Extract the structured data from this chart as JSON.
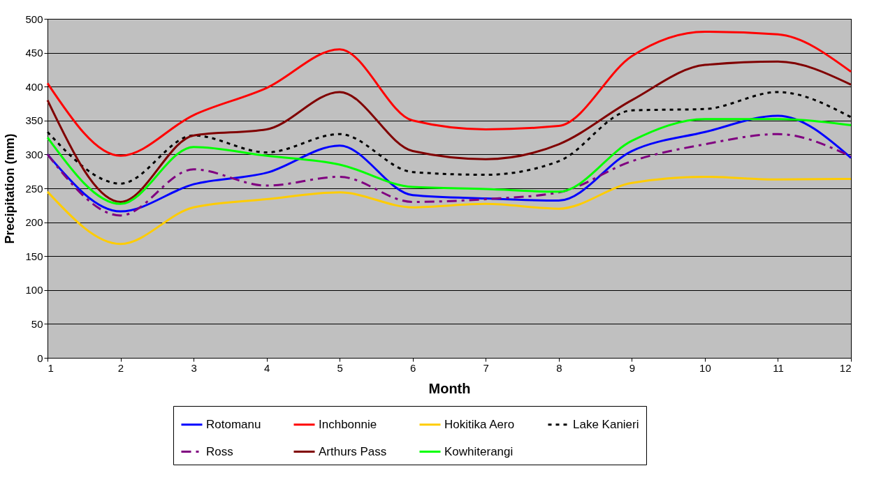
{
  "chart_data": {
    "type": "line",
    "xlabel": "Month",
    "ylabel": "Precipitation (mm)",
    "x": [
      1,
      2,
      3,
      4,
      5,
      6,
      7,
      8,
      9,
      10,
      11,
      12
    ],
    "xlim": [
      1,
      12
    ],
    "xticks": [
      1,
      2,
      3,
      4,
      5,
      6,
      7,
      8,
      9,
      10,
      11,
      12
    ],
    "ylim": [
      0,
      500
    ],
    "yticks": [
      0,
      50,
      100,
      150,
      200,
      250,
      300,
      350,
      400,
      450,
      500
    ],
    "grid": "y",
    "legend": "bottom",
    "marker": "none",
    "series": [
      {
        "name": "Rotomanu",
        "color": "#0000ff",
        "line_style": "solid",
        "values": [
          300,
          216,
          256,
          273,
          313,
          240,
          235,
          232,
          305,
          333,
          357,
          295
        ]
      },
      {
        "name": "Inchbonnie",
        "color": "#ff0000",
        "line_style": "solid",
        "values": [
          405,
          298,
          358,
          398,
          455,
          350,
          337,
          342,
          445,
          481,
          477,
          422
        ]
      },
      {
        "name": "Hokitika Aero",
        "color": "#ffcc00",
        "line_style": "solid",
        "values": [
          245,
          168,
          222,
          234,
          244,
          222,
          227,
          220,
          258,
          267,
          263,
          264
        ]
      },
      {
        "name": "Lake Kanieri",
        "color": "#000000",
        "line_style": "dotted",
        "values": [
          333,
          257,
          328,
          303,
          330,
          274,
          270,
          290,
          365,
          367,
          392,
          355
        ]
      },
      {
        "name": "Ross",
        "color": "#800080",
        "line_style": "dashed",
        "values": [
          300,
          210,
          278,
          254,
          267,
          230,
          234,
          244,
          290,
          315,
          330,
          297
        ]
      },
      {
        "name": "Arthurs Pass",
        "color": "#800000",
        "line_style": "solid",
        "values": [
          380,
          230,
          328,
          337,
          392,
          305,
          293,
          315,
          380,
          432,
          437,
          403
        ]
      },
      {
        "name": "Kowhiterangi",
        "color": "#00ff00",
        "line_style": "solid",
        "values": [
          325,
          227,
          311,
          298,
          285,
          252,
          249,
          245,
          320,
          352,
          352,
          343
        ]
      }
    ]
  }
}
